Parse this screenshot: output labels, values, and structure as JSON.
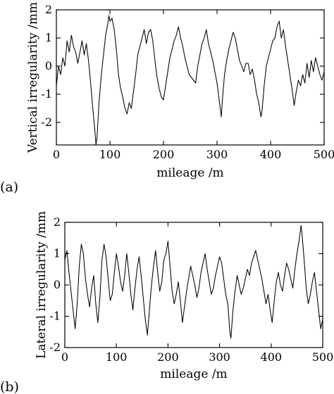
{
  "chart_data": [
    {
      "id": "a",
      "type": "line",
      "panel_label": "(a)",
      "title": "",
      "xlabel": "mileage /m",
      "ylabel": "Vertical irregularity /mm",
      "xlim": [
        0,
        500
      ],
      "ylim": [
        -2.8,
        2.0
      ],
      "xticks": [
        0,
        100,
        200,
        300,
        400,
        500
      ],
      "yticks": [
        -2,
        -1,
        0,
        1,
        2
      ],
      "grid": false,
      "legend": "none",
      "series": [
        {
          "color": "#000000",
          "x": [
            0,
            4,
            8,
            12,
            16,
            20,
            24,
            28,
            32,
            36,
            40,
            44,
            48,
            52,
            56,
            60,
            64,
            68,
            72,
            74,
            76,
            80,
            84,
            88,
            92,
            96,
            98,
            100,
            104,
            108,
            112,
            116,
            120,
            124,
            128,
            132,
            136,
            140,
            144,
            148,
            152,
            156,
            160,
            164,
            168,
            172,
            176,
            180,
            184,
            188,
            192,
            196,
            200,
            204,
            208,
            212,
            216,
            220,
            224,
            228,
            232,
            236,
            240,
            244,
            248,
            252,
            256,
            260,
            264,
            268,
            272,
            276,
            280,
            284,
            288,
            292,
            296,
            300,
            304,
            308,
            310,
            314,
            318,
            322,
            326,
            330,
            334,
            338,
            342,
            346,
            350,
            354,
            358,
            362,
            366,
            370,
            374,
            378,
            382,
            384,
            388,
            392,
            396,
            400,
            404,
            408,
            412,
            416,
            420,
            424,
            428,
            432,
            436,
            440,
            444,
            448,
            452,
            456,
            460,
            464,
            468,
            472,
            476,
            480,
            484,
            488,
            492,
            496,
            500
          ],
          "y": [
            -0.7,
            0.0,
            -0.3,
            0.3,
            0.0,
            0.9,
            0.5,
            1.1,
            0.7,
            0.5,
            0.1,
            0.5,
            0.9,
            0.4,
            0.8,
            0.2,
            -0.6,
            -1.5,
            -2.3,
            -2.8,
            -2.5,
            -1.2,
            -0.3,
            0.4,
            1.1,
            1.5,
            1.8,
            1.6,
            1.7,
            1.3,
            0.6,
            -0.3,
            -0.8,
            -1.1,
            -1.5,
            -1.7,
            -1.3,
            -1.5,
            -0.9,
            -0.3,
            0.4,
            0.7,
            1.0,
            1.3,
            0.8,
            1.2,
            1.3,
            0.9,
            0.2,
            -0.4,
            -0.8,
            -1.1,
            -1.2,
            -0.7,
            -0.2,
            0.3,
            0.6,
            0.9,
            1.1,
            1.4,
            1.0,
            0.7,
            0.3,
            0.0,
            -0.3,
            -0.4,
            -0.5,
            -0.6,
            0.0,
            0.4,
            0.8,
            1.0,
            1.3,
            0.8,
            0.5,
            0.2,
            -0.2,
            -0.6,
            -1.2,
            -1.8,
            -1.2,
            -0.3,
            0.2,
            0.6,
            0.9,
            1.2,
            1.0,
            0.6,
            0.2,
            0.0,
            -0.2,
            0.1,
            0.1,
            -0.3,
            -0.1,
            -0.5,
            -1.0,
            -1.3,
            -1.8,
            -1.6,
            -0.7,
            0.0,
            0.3,
            0.6,
            0.9,
            1.0,
            1.4,
            1.6,
            1.0,
            1.3,
            0.7,
            0.2,
            -0.3,
            -0.8,
            -1.4,
            -0.9,
            -0.5,
            -0.7,
            -0.3,
            -0.6,
            0.1,
            -0.4,
            0.2,
            -0.2,
            0.3,
            0.0,
            -0.3,
            -0.5,
            -0.2
          ]
        }
      ]
    },
    {
      "id": "b",
      "type": "line",
      "panel_label": "(b)",
      "title": "",
      "xlabel": "mileage /m",
      "ylabel": "Lateral irregularity /mm",
      "xlim": [
        0,
        500
      ],
      "ylim": [
        -2,
        2
      ],
      "xticks": [
        0,
        100,
        200,
        300,
        400,
        500
      ],
      "yticks": [
        -2,
        -1,
        0,
        1,
        2
      ],
      "grid": false,
      "legend": "none",
      "series": [
        {
          "color": "#000000",
          "x": [
            0,
            4,
            8,
            12,
            16,
            20,
            24,
            28,
            32,
            36,
            40,
            44,
            48,
            52,
            56,
            60,
            64,
            68,
            72,
            76,
            80,
            84,
            88,
            92,
            96,
            100,
            104,
            108,
            112,
            116,
            120,
            124,
            128,
            132,
            136,
            140,
            144,
            148,
            152,
            156,
            160,
            164,
            168,
            172,
            176,
            180,
            184,
            188,
            192,
            196,
            200,
            204,
            208,
            212,
            216,
            220,
            224,
            228,
            232,
            236,
            240,
            244,
            248,
            252,
            256,
            260,
            264,
            268,
            272,
            276,
            280,
            284,
            288,
            292,
            296,
            300,
            304,
            308,
            312,
            316,
            320,
            322,
            326,
            330,
            334,
            338,
            342,
            346,
            350,
            354,
            358,
            362,
            366,
            370,
            374,
            378,
            382,
            386,
            390,
            394,
            398,
            402,
            406,
            410,
            414,
            418,
            422,
            426,
            430,
            434,
            438,
            442,
            446,
            450,
            454,
            458,
            460,
            464,
            468,
            472,
            476,
            480,
            484,
            488,
            492,
            496,
            500
          ],
          "y": [
            0.8,
            1.1,
            0.4,
            -0.2,
            -0.8,
            -1.4,
            -0.6,
            0.6,
            1.3,
            1.0,
            0.2,
            -0.3,
            -0.7,
            -0.1,
            0.3,
            -0.6,
            -1.2,
            -0.4,
            0.8,
            1.3,
            0.9,
            0.2,
            -0.5,
            -0.3,
            0.4,
            1.0,
            0.6,
            0.1,
            -0.2,
            0.3,
            1.0,
            0.4,
            -0.3,
            -0.8,
            -0.1,
            0.5,
            0.9,
            0.3,
            -0.4,
            -1.1,
            -1.6,
            -0.8,
            0.0,
            0.6,
            1.1,
            0.4,
            -0.2,
            0.1,
            0.8,
            1.0,
            1.4,
            0.6,
            -0.2,
            -0.6,
            -0.3,
            0.1,
            -0.5,
            -1.2,
            -0.7,
            -0.2,
            0.2,
            0.6,
            0.3,
            0.0,
            -0.4,
            -0.1,
            0.4,
            0.7,
            1.0,
            0.5,
            0.1,
            -0.3,
            -0.1,
            0.3,
            0.6,
            0.9,
            0.7,
            0.2,
            -0.3,
            -0.6,
            -1.5,
            -1.7,
            -0.8,
            -0.2,
            0.3,
            0.0,
            -0.3,
            -0.1,
            0.2,
            0.5,
            0.3,
            0.7,
            0.9,
            1.1,
            0.8,
            0.5,
            0.2,
            -0.2,
            -0.6,
            -0.3,
            -0.8,
            -1.2,
            -0.5,
            0.1,
            0.4,
            0.0,
            -0.2,
            0.3,
            0.7,
            0.5,
            0.2,
            -0.1,
            0.5,
            1.0,
            1.4,
            1.9,
            1.6,
            0.8,
            -0.1,
            -0.6,
            -0.3,
            0.1,
            0.4,
            -0.2,
            -0.8,
            -1.4,
            -1.1
          ]
        }
      ]
    }
  ]
}
